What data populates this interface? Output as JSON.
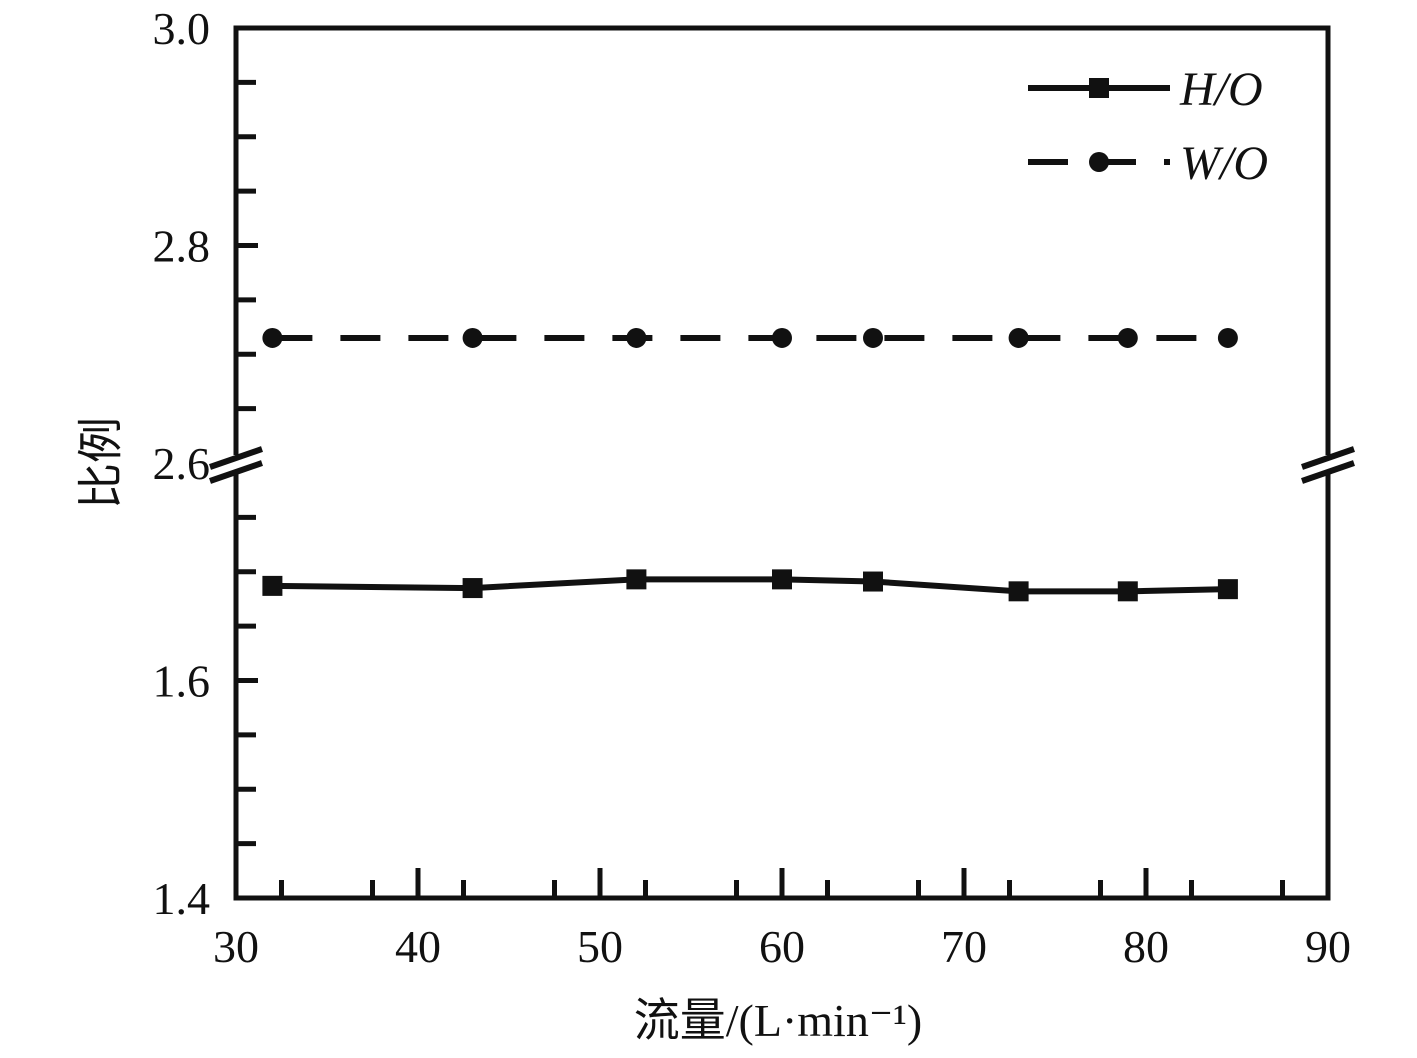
{
  "chart_data": {
    "type": "line",
    "xlabel": "流量/(L·min⁻¹)",
    "ylabel": "比例",
    "xlim": [
      30,
      90
    ],
    "x_ticks": [
      "30",
      "40",
      "50",
      "60",
      "70",
      "80",
      "90"
    ],
    "y_ticks": [
      "1.4",
      "1.6",
      "2.6",
      "2.8",
      "3.0"
    ],
    "axis_break": {
      "lower_range": [
        1.4,
        1.8
      ],
      "upper_range": [
        2.6,
        3.0
      ]
    },
    "grid": false,
    "legend_position": "top-right",
    "series": [
      {
        "name": "H/O",
        "line_style": "solid",
        "marker": "square",
        "color": "#111111",
        "x": [
          32,
          43,
          52,
          60,
          65,
          73,
          79,
          84.5
        ],
        "y": [
          1.687,
          1.685,
          1.693,
          1.693,
          1.691,
          1.682,
          1.682,
          1.684
        ]
      },
      {
        "name": "W/O",
        "line_style": "dashed",
        "marker": "circle",
        "color": "#111111",
        "x": [
          32,
          43,
          52,
          60,
          65,
          73,
          79,
          84.5
        ],
        "y": [
          2.715,
          2.715,
          2.715,
          2.715,
          2.715,
          2.715,
          2.715,
          2.715
        ]
      }
    ]
  }
}
